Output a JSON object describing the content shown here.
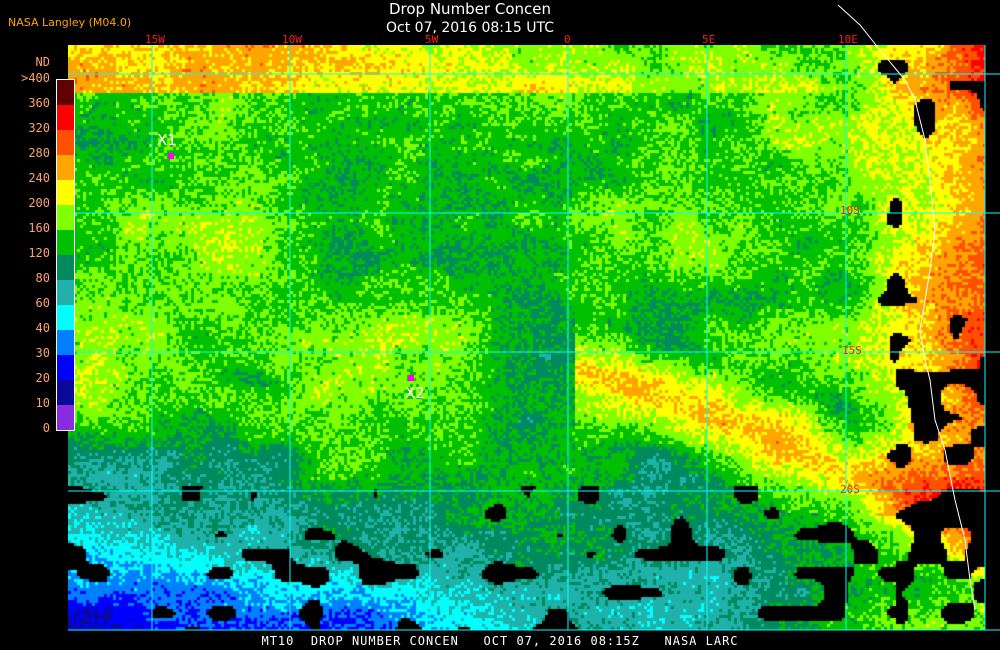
{
  "header": {
    "source": "NASA Langley (M04.0)",
    "title": "Drop Number Concen",
    "subtitle": "Oct 07, 2016 08:15 UTC"
  },
  "longitude_labels": [
    "15W",
    "10W",
    "5W",
    "0",
    "5E",
    "10E"
  ],
  "latitude_labels": [
    "10S",
    "15S",
    "20S"
  ],
  "legend": {
    "unit": "ND",
    "labels": [
      "0",
      "10",
      "20",
      "30",
      "40",
      "60",
      "80",
      "120",
      "160",
      "200",
      "240",
      "280",
      "320",
      "360",
      ">400"
    ],
    "colors": [
      "#8a2be2",
      "#0a0a9a",
      "#0000ff",
      "#0080ff",
      "#00ffff",
      "#20b2aa",
      "#008a5e",
      "#00c000",
      "#80ff00",
      "#ffff00",
      "#ffa500",
      "#ff5000",
      "#ff0000",
      "#600000"
    ]
  },
  "markers": [
    {
      "label": "X1"
    },
    {
      "label": "X2"
    }
  ],
  "footer": "MT10  DROP NUMBER CONCEN   OCT 07, 2016 08:15Z   NASA LARC",
  "colors": {
    "grid": "#00ffff",
    "coastline": "#ffffff",
    "lon_lat_labels": "#ff1a1a",
    "legend_text": "#ffa070",
    "source_text": "#ffa500",
    "marker": "#ff00ff"
  }
}
